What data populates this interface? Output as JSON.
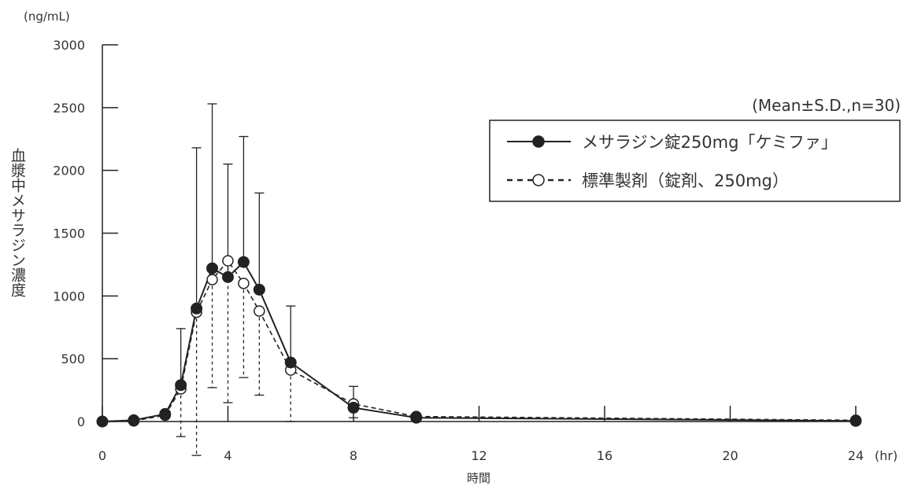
{
  "chart_data": {
    "type": "line",
    "ylabel": "血漿中メサラジン濃度",
    "yunit": "(ng/mL)",
    "xlabel": "時間",
    "xunit": "(hr)",
    "annotation": "(Mean±S.D.,n=30)",
    "xlim": [
      0,
      24
    ],
    "ylim": [
      0,
      3000
    ],
    "xticks": [
      0,
      4,
      8,
      12,
      16,
      20,
      24
    ],
    "yticks": [
      0,
      500,
      1000,
      1500,
      2000,
      2500,
      3000
    ],
    "grid": false,
    "legend_position": "top-right",
    "series": [
      {
        "name": "メサラジン錠250mg「ケミファ」",
        "marker": "filled-circle",
        "line_style": "solid",
        "x": [
          0,
          1,
          2,
          2.5,
          3,
          3.5,
          4,
          4.5,
          5,
          6,
          8,
          10,
          24
        ],
        "y": [
          0,
          10,
          60,
          290,
          900,
          1220,
          1150,
          1270,
          1050,
          470,
          110,
          30,
          5
        ],
        "sd_upper": [
          0,
          10,
          60,
          740,
          2180,
          2530,
          2050,
          2270,
          1820,
          920,
          280,
          50,
          5
        ]
      },
      {
        "name": "標準製剤（錠剤、250mg）",
        "marker": "open-circle",
        "line_style": "dashed",
        "x": [
          0,
          1,
          2,
          2.5,
          3,
          3.5,
          4,
          4.5,
          5,
          6,
          8,
          10,
          24
        ],
        "y": [
          0,
          5,
          50,
          260,
          870,
          1130,
          1280,
          1100,
          880,
          410,
          140,
          40,
          10
        ],
        "sd_lower": [
          0,
          5,
          50,
          -120,
          -270,
          270,
          150,
          350,
          210,
          0,
          30,
          30,
          10
        ]
      }
    ]
  }
}
